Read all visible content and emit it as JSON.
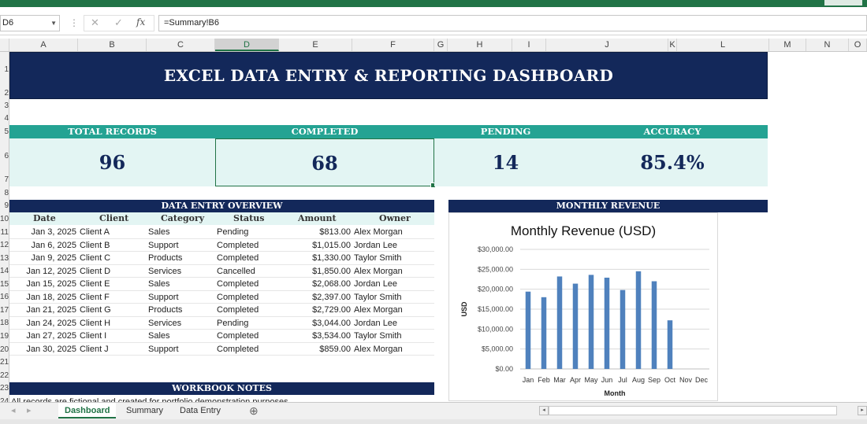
{
  "formula_bar": {
    "cell_ref": "D6",
    "formula": "=Summary!B6",
    "fx": "fx",
    "cancel": "✕",
    "enter": "✓"
  },
  "columns": [
    "A",
    "B",
    "C",
    "D",
    "E",
    "F",
    "G",
    "H",
    "I",
    "J",
    "K",
    "L",
    "M",
    "N",
    "O"
  ],
  "rows": [
    "1",
    "2",
    "3",
    "4",
    "5",
    "6",
    "7",
    "8",
    "9",
    "10",
    "11",
    "12",
    "13",
    "14",
    "15",
    "16",
    "17",
    "18",
    "19",
    "20",
    "21",
    "22",
    "23",
    "24"
  ],
  "title": "EXCEL DATA ENTRY & REPORTING DASHBOARD",
  "kpis": [
    {
      "label": "TOTAL RECORDS",
      "value": "96"
    },
    {
      "label": "COMPLETED",
      "value": "68"
    },
    {
      "label": "PENDING",
      "value": "14"
    },
    {
      "label": "ACCURACY",
      "value": "85.4%"
    }
  ],
  "overview": {
    "title": "DATA ENTRY OVERVIEW",
    "headers": [
      "Date",
      "Client",
      "Category",
      "Status",
      "Amount",
      "Owner"
    ],
    "rows": [
      [
        "Jan 3, 2025",
        "Client A",
        "Sales",
        "Pending",
        "$813.00",
        "Alex Morgan"
      ],
      [
        "Jan 6, 2025",
        "Client B",
        "Support",
        "Completed",
        "$1,015.00",
        "Jordan Lee"
      ],
      [
        "Jan 9, 2025",
        "Client C",
        "Products",
        "Completed",
        "$1,330.00",
        "Taylor Smith"
      ],
      [
        "Jan 12, 2025",
        "Client D",
        "Services",
        "Cancelled",
        "$1,850.00",
        "Alex Morgan"
      ],
      [
        "Jan 15, 2025",
        "Client E",
        "Sales",
        "Completed",
        "$2,068.00",
        "Jordan Lee"
      ],
      [
        "Jan 18, 2025",
        "Client F",
        "Support",
        "Completed",
        "$2,397.00",
        "Taylor Smith"
      ],
      [
        "Jan 21, 2025",
        "Client G",
        "Products",
        "Completed",
        "$2,729.00",
        "Alex Morgan"
      ],
      [
        "Jan 24, 2025",
        "Client H",
        "Services",
        "Pending",
        "$3,044.00",
        "Jordan Lee"
      ],
      [
        "Jan 27, 2025",
        "Client I",
        "Sales",
        "Completed",
        "$3,534.00",
        "Taylor Smith"
      ],
      [
        "Jan 30, 2025",
        "Client J",
        "Support",
        "Completed",
        "$859.00",
        "Alex Morgan"
      ]
    ]
  },
  "revenue_section": {
    "title": "MONTHLY REVENUE"
  },
  "chart_data": {
    "type": "bar",
    "title": "Monthly Revenue (USD)",
    "xlabel": "Month",
    "ylabel": "USD",
    "categories": [
      "Jan",
      "Feb",
      "Mar",
      "Apr",
      "May",
      "Jun",
      "Jul",
      "Aug",
      "Sep",
      "Oct",
      "Nov",
      "Dec"
    ],
    "values": [
      19400,
      18000,
      23200,
      21400,
      23600,
      22900,
      19800,
      24500,
      22000,
      12200,
      0,
      0
    ],
    "ylim": [
      0,
      30000
    ],
    "yticks": [
      "$0.00",
      "$5,000.00",
      "$10,000.00",
      "$15,000.00",
      "$20,000.00",
      "$25,000.00",
      "$30,000.00"
    ],
    "grid": true,
    "bar_color": "#4f81bd"
  },
  "notes": {
    "title": "WORKBOOK NOTES",
    "first_line": "All records are fictional and created for portfolio demonstration purposes."
  },
  "sheets": {
    "tabs": [
      "Dashboard",
      "Summary",
      "Data Entry"
    ],
    "active": "Dashboard",
    "add": "⊕",
    "prev": "◂",
    "next": "▸"
  },
  "colors": {
    "navy": "#13285a",
    "teal": "#24a393",
    "light_teal": "#e3f5f3",
    "excel_green": "#217346"
  }
}
